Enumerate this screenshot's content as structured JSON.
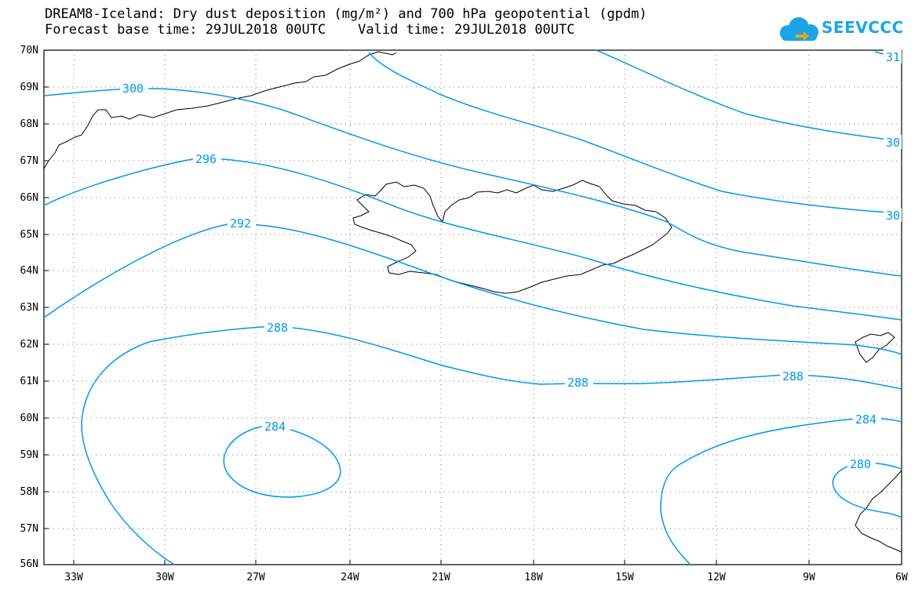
{
  "header": {
    "title_line1": "DREAM8-Iceland: Dry dust deposition (mg/m²) and 700 hPa geopotential (gpdm)",
    "title_line2": "Forecast base time: 29JUL2018 00UTC    Valid time: 29JUL2018 00UTC"
  },
  "logo": {
    "text": "SEEVCCC",
    "icon": "cloud-arrow-icon"
  },
  "map": {
    "lat_labels": [
      "70N",
      "69N",
      "68N",
      "67N",
      "66N",
      "65N",
      "64N",
      "63N",
      "62N",
      "61N",
      "60N",
      "59N",
      "58N",
      "57N",
      "56N"
    ],
    "lon_labels": [
      "33W",
      "30W",
      "27W",
      "24W",
      "21W",
      "18W",
      "15W",
      "12W",
      "9W",
      "6W"
    ],
    "contour_color": "#0099ee",
    "contour_labels": {
      "c300": "300",
      "c296": "296",
      "c292": "292",
      "c288a": "288",
      "c288b": "288",
      "c288c": "288",
      "c284a": "284",
      "c284b": "284",
      "c280": "280",
      "edge31": "31",
      "edge30a": "30",
      "edge30b": "30"
    }
  }
}
